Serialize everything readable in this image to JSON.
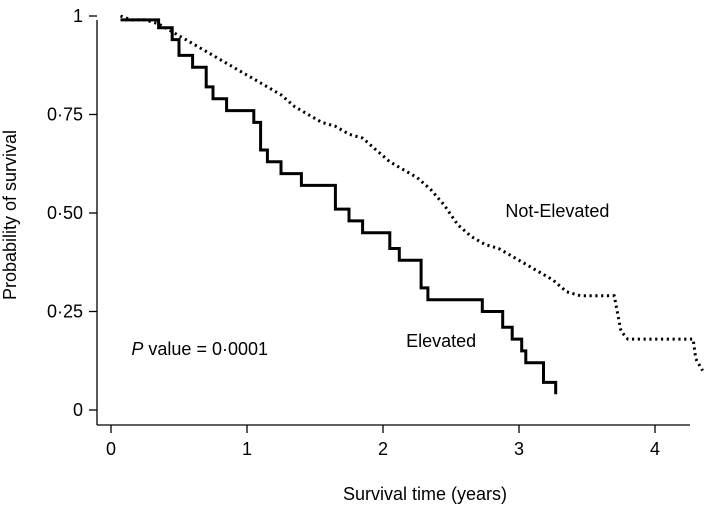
{
  "chart_data": {
    "type": "line",
    "title": "",
    "xlabel": "Survival time (years)",
    "ylabel": "Probability of survival",
    "xlim": [
      0,
      4.4
    ],
    "ylim": [
      0,
      1
    ],
    "x_ticks": [
      0,
      1,
      2,
      3,
      4
    ],
    "x_tick_labels": [
      "0",
      "1",
      "2",
      "3",
      "4"
    ],
    "y_ticks": [
      0,
      0.25,
      0.5,
      0.75,
      1
    ],
    "y_tick_labels": [
      "0",
      "0·25",
      "0·50",
      "0·75",
      "1"
    ],
    "grid": false,
    "annotation": {
      "italic": "P",
      "text": " value = 0·0001",
      "x": 0.15,
      "y": 0.14
    },
    "series": [
      {
        "name": "Not-Elevated",
        "style": "dotted",
        "label_pos": {
          "x": 2.9,
          "y": 0.49
        },
        "points": [
          [
            0.07,
            1.0
          ],
          [
            0.15,
            0.99
          ],
          [
            0.25,
            0.99
          ],
          [
            0.35,
            0.98
          ],
          [
            0.45,
            0.96
          ],
          [
            0.55,
            0.94
          ],
          [
            0.65,
            0.92
          ],
          [
            0.75,
            0.9
          ],
          [
            0.85,
            0.88
          ],
          [
            0.95,
            0.86
          ],
          [
            1.05,
            0.84
          ],
          [
            1.15,
            0.82
          ],
          [
            1.25,
            0.8
          ],
          [
            1.35,
            0.77
          ],
          [
            1.45,
            0.75
          ],
          [
            1.55,
            0.73
          ],
          [
            1.65,
            0.72
          ],
          [
            1.75,
            0.7
          ],
          [
            1.85,
            0.69
          ],
          [
            1.95,
            0.66
          ],
          [
            2.05,
            0.63
          ],
          [
            2.15,
            0.61
          ],
          [
            2.25,
            0.59
          ],
          [
            2.35,
            0.56
          ],
          [
            2.45,
            0.52
          ],
          [
            2.55,
            0.47
          ],
          [
            2.65,
            0.44
          ],
          [
            2.75,
            0.42
          ],
          [
            2.85,
            0.41
          ],
          [
            2.95,
            0.39
          ],
          [
            3.05,
            0.37
          ],
          [
            3.15,
            0.35
          ],
          [
            3.25,
            0.33
          ],
          [
            3.35,
            0.3
          ],
          [
            3.45,
            0.29
          ],
          [
            3.55,
            0.29
          ],
          [
            3.7,
            0.29
          ],
          [
            3.75,
            0.2
          ],
          [
            3.8,
            0.18
          ],
          [
            4.0,
            0.18
          ],
          [
            4.28,
            0.18
          ],
          [
            4.3,
            0.13
          ],
          [
            4.35,
            0.1
          ]
        ]
      },
      {
        "name": "Elevated",
        "style": "solid",
        "label_pos": {
          "x": 2.17,
          "y": 0.16
        },
        "points": [
          [
            0.07,
            0.99
          ],
          [
            0.35,
            0.99
          ],
          [
            0.35,
            0.97
          ],
          [
            0.45,
            0.97
          ],
          [
            0.45,
            0.94
          ],
          [
            0.5,
            0.94
          ],
          [
            0.5,
            0.9
          ],
          [
            0.6,
            0.9
          ],
          [
            0.6,
            0.87
          ],
          [
            0.7,
            0.87
          ],
          [
            0.7,
            0.82
          ],
          [
            0.75,
            0.82
          ],
          [
            0.75,
            0.79
          ],
          [
            0.85,
            0.79
          ],
          [
            0.85,
            0.76
          ],
          [
            1.05,
            0.76
          ],
          [
            1.05,
            0.73
          ],
          [
            1.1,
            0.73
          ],
          [
            1.1,
            0.66
          ],
          [
            1.15,
            0.66
          ],
          [
            1.15,
            0.63
          ],
          [
            1.25,
            0.63
          ],
          [
            1.25,
            0.6
          ],
          [
            1.4,
            0.6
          ],
          [
            1.4,
            0.57
          ],
          [
            1.65,
            0.57
          ],
          [
            1.65,
            0.51
          ],
          [
            1.75,
            0.51
          ],
          [
            1.75,
            0.48
          ],
          [
            1.85,
            0.48
          ],
          [
            1.85,
            0.45
          ],
          [
            2.05,
            0.45
          ],
          [
            2.05,
            0.41
          ],
          [
            2.12,
            0.41
          ],
          [
            2.12,
            0.38
          ],
          [
            2.28,
            0.38
          ],
          [
            2.28,
            0.31
          ],
          [
            2.33,
            0.31
          ],
          [
            2.33,
            0.28
          ],
          [
            2.73,
            0.28
          ],
          [
            2.73,
            0.25
          ],
          [
            2.88,
            0.25
          ],
          [
            2.88,
            0.21
          ],
          [
            2.95,
            0.21
          ],
          [
            2.95,
            0.18
          ],
          [
            3.02,
            0.18
          ],
          [
            3.02,
            0.15
          ],
          [
            3.05,
            0.15
          ],
          [
            3.05,
            0.12
          ],
          [
            3.18,
            0.12
          ],
          [
            3.18,
            0.07
          ],
          [
            3.27,
            0.07
          ],
          [
            3.27,
            0.04
          ]
        ]
      }
    ]
  }
}
